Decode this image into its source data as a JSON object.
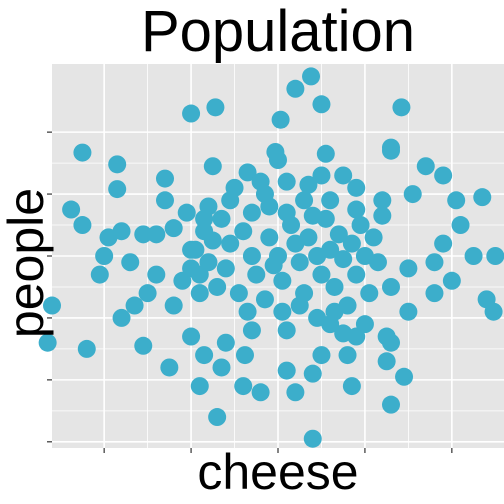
{
  "chart_data": {
    "type": "scatter",
    "title": "Population",
    "xlabel": "cheese",
    "ylabel": "people",
    "xlim": [
      -2.6,
      2.6
    ],
    "ylim": [
      -3.1,
      3.1
    ],
    "x_ticks": [
      -2,
      -1,
      0,
      1,
      2
    ],
    "y_ticks": [
      -3,
      -2,
      -1,
      0,
      1,
      2
    ],
    "tick_labels_shown": false,
    "grid": true,
    "point_color": "#3caecb",
    "panel_color": "#e5e5e5",
    "grid_color": "#ffffff",
    "points": [
      [
        0.38,
        2.9
      ],
      [
        -0.72,
        2.4
      ],
      [
        -1.0,
        2.3
      ],
      [
        0.03,
        2.2
      ],
      [
        0.5,
        2.45
      ],
      [
        0.2,
        2.7
      ],
      [
        1.42,
        2.4
      ],
      [
        1.3,
        1.75
      ],
      [
        1.3,
        1.7
      ],
      [
        -2.25,
        1.67
      ],
      [
        -1.85,
        1.48
      ],
      [
        -1.3,
        1.25
      ],
      [
        0.55,
        1.65
      ],
      [
        1.9,
        1.3
      ],
      [
        1.7,
        1.45
      ],
      [
        -0.75,
        1.45
      ],
      [
        -1.85,
        1.08
      ],
      [
        -0.03,
        1.68
      ],
      [
        0.0,
        1.55
      ],
      [
        -0.35,
        1.35
      ],
      [
        -0.2,
        1.2
      ],
      [
        -0.5,
        1.1
      ],
      [
        0.1,
        1.2
      ],
      [
        0.35,
        1.15
      ],
      [
        0.5,
        1.3
      ],
      [
        -1.3,
        0.9
      ],
      [
        -1.05,
        0.7
      ],
      [
        -0.8,
        0.8
      ],
      [
        0.9,
        0.75
      ],
      [
        1.2,
        0.9
      ],
      [
        1.55,
        1.0
      ],
      [
        1.2,
        0.65
      ],
      [
        2.05,
        0.9
      ],
      [
        2.35,
        0.95
      ],
      [
        -2.38,
        0.75
      ],
      [
        -2.25,
        0.5
      ],
      [
        -1.95,
        0.3
      ],
      [
        -1.8,
        0.4
      ],
      [
        -1.55,
        0.35
      ],
      [
        -1.4,
        0.35
      ],
      [
        -1.2,
        0.45
      ],
      [
        -1.0,
        0.1
      ],
      [
        -0.85,
        0.6
      ],
      [
        -2.0,
        0.0
      ],
      [
        -2.05,
        -0.3
      ],
      [
        -1.7,
        -0.1
      ],
      [
        -1.4,
        -0.3
      ],
      [
        -1.1,
        -0.4
      ],
      [
        -1.5,
        -0.6
      ],
      [
        -1.65,
        -0.8
      ],
      [
        -1.2,
        -0.8
      ],
      [
        -0.9,
        -0.6
      ],
      [
        2.1,
        0.5
      ],
      [
        1.9,
        0.2
      ],
      [
        1.8,
        -0.1
      ],
      [
        2.25,
        0.0
      ],
      [
        2.5,
        0.0
      ],
      [
        1.5,
        -0.2
      ],
      [
        2.4,
        -0.7
      ],
      [
        2.48,
        -0.9
      ],
      [
        1.3,
        -0.5
      ],
      [
        -2.6,
        -0.8
      ],
      [
        -2.65,
        -1.4
      ],
      [
        -2.2,
        -1.5
      ],
      [
        -1.55,
        -1.45
      ],
      [
        -1.0,
        -1.3
      ],
      [
        -0.85,
        -1.6
      ],
      [
        -1.25,
        -1.8
      ],
      [
        -0.65,
        -1.8
      ],
      [
        -0.9,
        -2.1
      ],
      [
        -0.38,
        -1.6
      ],
      [
        -0.4,
        -2.1
      ],
      [
        -0.2,
        -2.2
      ],
      [
        0.2,
        -2.2
      ],
      [
        0.4,
        -1.9
      ],
      [
        0.1,
        -1.85
      ],
      [
        0.5,
        -1.6
      ],
      [
        0.8,
        -1.6
      ],
      [
        0.9,
        -1.3
      ],
      [
        0.75,
        -1.25
      ],
      [
        1.3,
        -1.4
      ],
      [
        1.25,
        -1.7
      ],
      [
        1.45,
        -1.95
      ],
      [
        1.25,
        -1.3
      ],
      [
        0.85,
        -2.1
      ],
      [
        1.3,
        -2.4
      ],
      [
        -0.7,
        -2.6
      ],
      [
        0.4,
        -2.95
      ],
      [
        -1.8,
        -1.0
      ],
      [
        -0.6,
        -1.4
      ],
      [
        -0.3,
        -1.2
      ],
      [
        0.1,
        -1.2
      ],
      [
        0.6,
        -1.1
      ],
      [
        1.0,
        -1.1
      ],
      [
        1.5,
        -0.9
      ],
      [
        1.8,
        -0.6
      ],
      [
        2.0,
        -0.4
      ],
      [
        -0.55,
        0.2
      ],
      [
        -0.4,
        0.4
      ],
      [
        -0.3,
        0.0
      ],
      [
        -0.25,
        -0.3
      ],
      [
        -0.1,
        0.3
      ],
      [
        0.0,
        0.0
      ],
      [
        0.05,
        -0.4
      ],
      [
        0.15,
        0.5
      ],
      [
        0.2,
        0.2
      ],
      [
        0.25,
        -0.1
      ],
      [
        0.3,
        -0.6
      ],
      [
        0.35,
        0.3
      ],
      [
        0.45,
        0.0
      ],
      [
        0.5,
        -0.3
      ],
      [
        0.55,
        0.6
      ],
      [
        0.6,
        0.1
      ],
      [
        0.65,
        -0.5
      ],
      [
        0.7,
        0.35
      ],
      [
        0.75,
        -0.05
      ],
      [
        0.8,
        -0.8
      ],
      [
        0.85,
        0.2
      ],
      [
        0.9,
        -0.3
      ],
      [
        0.95,
        0.5
      ],
      [
        1.0,
        0.0
      ],
      [
        1.05,
        -0.6
      ],
      [
        1.1,
        0.3
      ],
      [
        1.15,
        -0.1
      ],
      [
        -0.6,
        -0.2
      ],
      [
        -0.65,
        0.6
      ],
      [
        -0.7,
        -0.5
      ],
      [
        -0.75,
        0.25
      ],
      [
        -0.8,
        -0.1
      ],
      [
        -0.85,
        0.4
      ],
      [
        -0.9,
        -0.3
      ],
      [
        -0.95,
        0.1
      ],
      [
        -1.0,
        -0.2
      ],
      [
        -0.45,
        -0.6
      ],
      [
        -0.35,
        -0.9
      ],
      [
        -0.15,
        -0.7
      ],
      [
        0.05,
        -0.9
      ],
      [
        0.25,
        -0.8
      ],
      [
        0.45,
        -1.0
      ],
      [
        0.65,
        -0.9
      ],
      [
        -0.1,
        0.8
      ],
      [
        0.3,
        0.9
      ],
      [
        0.6,
        0.9
      ],
      [
        -0.3,
        0.7
      ],
      [
        -0.55,
        0.9
      ],
      [
        0.9,
        1.1
      ],
      [
        0.75,
        1.3
      ],
      [
        -0.15,
        1.0
      ],
      [
        0.1,
        0.7
      ],
      [
        0.4,
        0.65
      ],
      [
        -0.05,
        -0.15
      ]
    ]
  }
}
